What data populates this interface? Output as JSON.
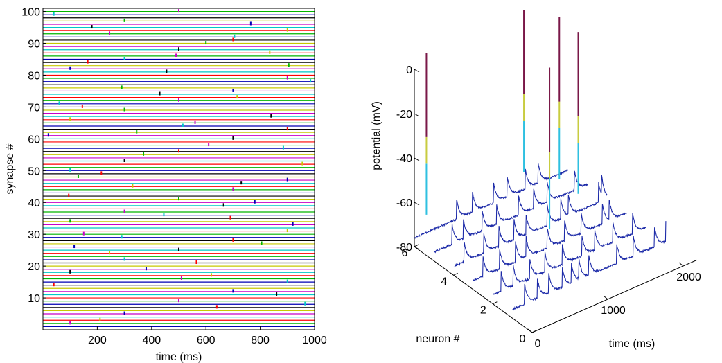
{
  "chart_data": [
    {
      "type": "raster",
      "xlabel": "time (ms)",
      "ylabel": "synapse #",
      "xlim": [
        0,
        1000
      ],
      "ylim": [
        0,
        101
      ],
      "xticks": [
        200,
        400,
        600,
        800,
        1000
      ],
      "yticks": [
        10,
        20,
        30,
        40,
        50,
        60,
        70,
        80,
        90,
        100
      ],
      "n_synapses": 100,
      "line_colors": [
        "#0000b4",
        "#00b400",
        "#ff0000",
        "#00c8c8",
        "#c800c8",
        "#c8c800",
        "#000000"
      ],
      "spike_columns_ms": [
        100,
        300,
        500,
        700,
        900
      ],
      "spikes": [
        [
          2,
          100
        ],
        [
          5,
          300
        ],
        [
          9,
          500
        ],
        [
          12,
          700
        ],
        [
          15,
          900
        ],
        [
          18,
          100
        ],
        [
          22,
          300
        ],
        [
          25,
          500
        ],
        [
          28,
          700
        ],
        [
          31,
          900
        ],
        [
          34,
          100
        ],
        [
          37,
          300
        ],
        [
          41,
          500
        ],
        [
          44,
          700
        ],
        [
          47,
          900
        ],
        [
          50,
          100
        ],
        [
          53,
          300
        ],
        [
          56,
          500
        ],
        [
          60,
          700
        ],
        [
          63,
          900
        ],
        [
          66,
          100
        ],
        [
          69,
          300
        ],
        [
          72,
          500
        ],
        [
          75,
          700
        ],
        [
          79,
          900
        ],
        [
          82,
          100
        ],
        [
          85,
          300
        ],
        [
          88,
          500
        ],
        [
          91,
          700
        ],
        [
          94,
          900
        ],
        [
          97,
          300
        ],
        [
          100,
          500
        ],
        [
          3,
          210
        ],
        [
          7,
          640
        ],
        [
          11,
          860
        ],
        [
          14,
          40
        ],
        [
          19,
          380
        ],
        [
          21,
          565
        ],
        [
          24,
          245
        ],
        [
          27,
          805
        ],
        [
          30,
          150
        ],
        [
          33,
          920
        ],
        [
          36,
          445
        ],
        [
          39,
          665
        ],
        [
          42,
          95
        ],
        [
          46,
          730
        ],
        [
          49,
          215
        ],
        [
          52,
          955
        ],
        [
          55,
          370
        ],
        [
          58,
          610
        ],
        [
          61,
          20
        ],
        [
          64,
          515
        ],
        [
          67,
          840
        ],
        [
          70,
          145
        ],
        [
          73,
          715
        ],
        [
          76,
          290
        ],
        [
          78,
          985
        ],
        [
          81,
          455
        ],
        [
          84,
          165
        ],
        [
          87,
          835
        ],
        [
          90,
          600
        ],
        [
          93,
          245
        ],
        [
          96,
          765
        ],
        [
          99,
          40
        ],
        [
          16,
          510
        ],
        [
          26,
          115
        ],
        [
          35,
          690
        ],
        [
          45,
          330
        ],
        [
          57,
          885
        ],
        [
          65,
          560
        ],
        [
          74,
          430
        ],
        [
          86,
          490
        ],
        [
          95,
          180
        ],
        [
          8,
          965
        ],
        [
          17,
          620
        ],
        [
          29,
          290
        ],
        [
          40,
          780
        ],
        [
          48,
          130
        ],
        [
          62,
          345
        ],
        [
          71,
          60
        ],
        [
          83,
          905
        ],
        [
          92,
          705
        ]
      ]
    },
    {
      "type": "waterfall-3d",
      "xlabel": "time (ms)",
      "ylabel": "neuron #",
      "zlabel": "potential (mV)",
      "xlim": [
        0,
        2000
      ],
      "ylim": [
        0,
        6
      ],
      "zlim": [
        -80,
        0
      ],
      "xticks": [
        0,
        1000,
        2000
      ],
      "yticks": [
        0,
        2,
        4,
        6
      ],
      "zticks": [
        0,
        -20,
        -40,
        -60,
        -80
      ],
      "resting_potential": -76,
      "neurons": [
        {
          "neuron": 1,
          "epsps_ms": [
            160,
            330,
            480,
            660,
            780,
            880,
            1010,
            1380,
            1600,
            1880,
            2030
          ],
          "spikes_ms": []
        },
        {
          "neuron": 2,
          "epsps_ms": [
            110,
            270,
            490,
            690,
            920,
            1180,
            1350,
            1590,
            1850
          ],
          "spikes_ms": []
        },
        {
          "neuron": 3,
          "epsps_ms": [
            130,
            350,
            560,
            700,
            980,
            1210,
            1430,
            1710,
            1800
          ],
          "spikes_ms": [
            1010
          ]
        },
        {
          "neuron": 4,
          "epsps_ms": [
            140,
            400,
            600,
            800,
            960,
            1240,
            1420,
            1520,
            1920,
            1960
          ],
          "spikes_ms": [
            1650
          ]
        },
        {
          "neuron": 5,
          "epsps_ms": [
            240,
            390,
            640,
            830,
            1120,
            1320,
            1500,
            1860
          ],
          "spikes_ms": [
            1660
          ]
        },
        {
          "neuron": 6,
          "epsps_ms": [
            560,
            770,
            1050,
            1230,
            1470,
            1640
          ],
          "spikes_ms": [
            160,
            1450
          ]
        }
      ]
    }
  ]
}
